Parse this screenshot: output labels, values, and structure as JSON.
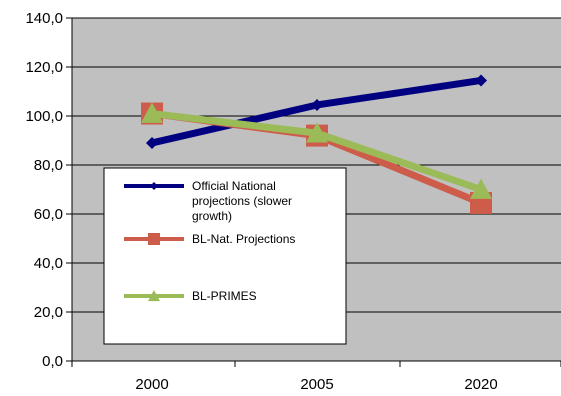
{
  "chart_data": {
    "type": "line",
    "title": "",
    "xlabel": "",
    "ylabel": "",
    "categories": [
      "2000",
      "2005",
      "2020"
    ],
    "ylim": [
      0,
      140
    ],
    "yticks": [
      "0,0",
      "20,0",
      "40,0",
      "60,0",
      "80,0",
      "100,0",
      "120,0",
      "140,0"
    ],
    "grid": true,
    "legend_position": "left-center",
    "plot_background": "#c0c0c0",
    "series": [
      {
        "name": "Official National projections (slower growth)",
        "legend_lines": [
          "Official National",
          "projections (slower",
          "growth)"
        ],
        "values": [
          89,
          104.5,
          114.5
        ],
        "color": "#000080",
        "marker": "diamond"
      },
      {
        "name": "BL-Nat. Projections",
        "legend_lines": [
          "BL-Nat. Projections"
        ],
        "values": [
          101,
          92,
          64.5
        ],
        "color": "#cd5c4a",
        "marker": "square"
      },
      {
        "name": "BL-PRIMES",
        "legend_lines": [
          "BL-PRIMES"
        ],
        "values": [
          101,
          93,
          70
        ],
        "color": "#9bbb59",
        "marker": "triangle"
      }
    ]
  }
}
